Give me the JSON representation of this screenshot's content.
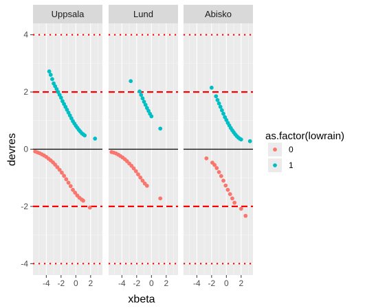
{
  "chart_data": {
    "type": "scatter",
    "xlabel": "xbeta",
    "ylabel": "devres",
    "xlim": [
      -5.8,
      3.6
    ],
    "ylim": [
      -4.4,
      4.4
    ],
    "x_ticks": [
      -4,
      -2,
      0,
      2
    ],
    "x_tick_labels": [
      "-4",
      "-2",
      "0",
      "2"
    ],
    "y_ticks": [
      -4,
      -2,
      0,
      2,
      4
    ],
    "y_tick_labels": [
      "-4",
      "-2",
      "0",
      "2",
      "4"
    ],
    "grid": true,
    "reference_lines": [
      {
        "y": 0,
        "style": "solid",
        "color": "#000000"
      },
      {
        "y": 2,
        "style": "dashed",
        "color": "#ff0000"
      },
      {
        "y": -2,
        "style": "dashed",
        "color": "#ff0000"
      },
      {
        "y": 4,
        "style": "dotted",
        "color": "#ff0000"
      },
      {
        "y": -4,
        "style": "dotted",
        "color": "#ff0000"
      }
    ],
    "legend": {
      "title": "as.factor(lowrain)",
      "placement": "right",
      "entries": [
        {
          "label": "0",
          "color": "#F8766D"
        },
        {
          "label": "1",
          "color": "#00BFC4"
        }
      ]
    },
    "panels": [
      {
        "name": "Uppsala",
        "series": [
          {
            "group": "0",
            "color": "#F8766D",
            "points": [
              [
                -5.5,
                -0.08
              ],
              [
                -5.2,
                -0.11
              ],
              [
                -4.9,
                -0.14
              ],
              [
                -4.6,
                -0.18
              ],
              [
                -4.3,
                -0.22
              ],
              [
                -4.0,
                -0.27
              ],
              [
                -3.7,
                -0.33
              ],
              [
                -3.4,
                -0.39
              ],
              [
                -3.1,
                -0.46
              ],
              [
                -2.8,
                -0.54
              ],
              [
                -2.5,
                -0.63
              ],
              [
                -2.2,
                -0.72
              ],
              [
                -1.9,
                -0.82
              ],
              [
                -1.6,
                -0.93
              ],
              [
                -1.3,
                -1.05
              ],
              [
                -1.0,
                -1.17
              ],
              [
                -0.7,
                -1.29
              ],
              [
                -0.4,
                -1.42
              ],
              [
                -0.1,
                -1.52
              ],
              [
                0.2,
                -1.62
              ],
              [
                0.5,
                -1.7
              ],
              [
                0.8,
                -1.76
              ],
              [
                1.0,
                -1.8
              ],
              [
                1.9,
                -2.04
              ]
            ]
          },
          {
            "group": "1",
            "color": "#00BFC4",
            "points": [
              [
                -3.6,
                2.72
              ],
              [
                -3.4,
                2.6
              ],
              [
                -3.2,
                2.45
              ],
              [
                -3.0,
                2.3
              ],
              [
                -2.8,
                2.2
              ],
              [
                -2.6,
                2.1
              ],
              [
                -2.4,
                2.0
              ],
              [
                -2.2,
                1.9
              ],
              [
                -2.0,
                1.8
              ],
              [
                -1.8,
                1.68
              ],
              [
                -1.6,
                1.58
              ],
              [
                -1.4,
                1.48
              ],
              [
                -1.2,
                1.38
              ],
              [
                -1.0,
                1.28
              ],
              [
                -0.8,
                1.18
              ],
              [
                -0.6,
                1.08
              ],
              [
                -0.4,
                0.98
              ],
              [
                -0.2,
                0.9
              ],
              [
                0.0,
                0.82
              ],
              [
                0.2,
                0.75
              ],
              [
                0.4,
                0.68
              ],
              [
                0.6,
                0.62
              ],
              [
                0.8,
                0.56
              ],
              [
                1.0,
                0.52
              ],
              [
                1.2,
                0.48
              ],
              [
                2.6,
                0.37
              ]
            ]
          }
        ]
      },
      {
        "name": "Lund",
        "series": [
          {
            "group": "0",
            "color": "#F8766D",
            "points": [
              [
                -5.4,
                -0.1
              ],
              [
                -5.1,
                -0.12
              ],
              [
                -4.8,
                -0.15
              ],
              [
                -4.5,
                -0.19
              ],
              [
                -4.2,
                -0.24
              ],
              [
                -3.9,
                -0.29
              ],
              [
                -3.6,
                -0.35
              ],
              [
                -3.3,
                -0.42
              ],
              [
                -3.0,
                -0.5
              ],
              [
                -2.7,
                -0.58
              ],
              [
                -2.4,
                -0.67
              ],
              [
                -2.1,
                -0.77
              ],
              [
                -1.8,
                -0.88
              ],
              [
                -1.5,
                -0.99
              ],
              [
                -1.2,
                -1.1
              ],
              [
                -0.9,
                -1.2
              ],
              [
                -0.6,
                -1.28
              ],
              [
                1.2,
                -1.72
              ]
            ]
          },
          {
            "group": "1",
            "color": "#00BFC4",
            "points": [
              [
                -2.8,
                2.38
              ],
              [
                -1.6,
                2.02
              ],
              [
                -1.4,
                1.9
              ],
              [
                -1.2,
                1.78
              ],
              [
                -1.0,
                1.66
              ],
              [
                -0.8,
                1.55
              ],
              [
                -0.6,
                1.44
              ],
              [
                -0.4,
                1.34
              ],
              [
                -0.2,
                1.24
              ],
              [
                0.0,
                1.15
              ],
              [
                1.2,
                0.72
              ]
            ]
          }
        ]
      },
      {
        "name": "Abisko",
        "series": [
          {
            "group": "0",
            "color": "#F8766D",
            "points": [
              [
                -2.7,
                -0.32
              ],
              [
                -1.9,
                -0.47
              ],
              [
                -1.6,
                -0.55
              ],
              [
                -1.3,
                -0.66
              ],
              [
                -1.0,
                -0.8
              ],
              [
                -0.7,
                -0.94
              ],
              [
                -0.4,
                -1.1
              ],
              [
                -0.1,
                -1.27
              ],
              [
                0.2,
                -1.42
              ],
              [
                0.5,
                -1.57
              ],
              [
                0.8,
                -1.72
              ],
              [
                1.1,
                -1.87
              ],
              [
                2.0,
                -2.08
              ],
              [
                2.6,
                -2.33
              ]
            ]
          },
          {
            "group": "1",
            "color": "#00BFC4",
            "points": [
              [
                -2.0,
                2.15
              ],
              [
                -1.4,
                1.85
              ],
              [
                -1.2,
                1.72
              ],
              [
                -1.0,
                1.6
              ],
              [
                -0.8,
                1.48
              ],
              [
                -0.6,
                1.36
              ],
              [
                -0.4,
                1.24
              ],
              [
                -0.2,
                1.12
              ],
              [
                0.0,
                1.02
              ],
              [
                0.2,
                0.92
              ],
              [
                0.4,
                0.83
              ],
              [
                0.6,
                0.74
              ],
              [
                0.8,
                0.66
              ],
              [
                1.0,
                0.59
              ],
              [
                1.2,
                0.52
              ],
              [
                1.4,
                0.46
              ],
              [
                1.6,
                0.41
              ],
              [
                1.8,
                0.37
              ],
              [
                2.0,
                0.34
              ],
              [
                3.2,
                0.28
              ]
            ]
          }
        ]
      }
    ]
  }
}
